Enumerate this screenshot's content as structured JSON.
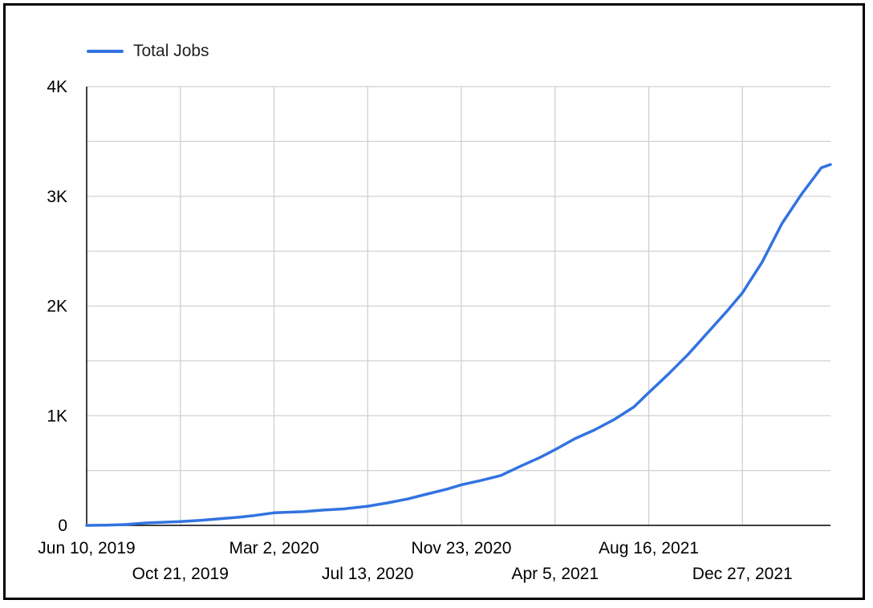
{
  "chart_data": {
    "type": "line",
    "title": "",
    "xlabel": "",
    "ylabel": "",
    "legend": "top-left",
    "grid": true,
    "colors": {
      "series": "#3273e0",
      "grid": "#d0d0d0",
      "axis": "#000000"
    },
    "x_ticks": [
      "Jun 10, 2019",
      "Oct 21, 2019",
      "Mar 2, 2020",
      "Jul 13, 2020",
      "Nov 23, 2020",
      "Apr 5, 2021",
      "Aug 16, 2021",
      "Dec 27, 2021"
    ],
    "x_range": [
      "2019-06-10",
      "2022-05-01"
    ],
    "y_ticks": [
      "0",
      "1K",
      "2K",
      "3K",
      "4K"
    ],
    "ylim": [
      0,
      4000
    ],
    "series": [
      {
        "name": "Total Jobs",
        "points": [
          [
            "2019-06-10",
            0
          ],
          [
            "2019-07-08",
            2
          ],
          [
            "2019-08-05",
            8
          ],
          [
            "2019-09-02",
            22
          ],
          [
            "2019-10-21",
            35
          ],
          [
            "2019-11-18",
            45
          ],
          [
            "2019-12-16",
            60
          ],
          [
            "2020-01-13",
            75
          ],
          [
            "2020-02-03",
            90
          ],
          [
            "2020-03-02",
            115
          ],
          [
            "2020-04-13",
            125
          ],
          [
            "2020-05-11",
            140
          ],
          [
            "2020-06-08",
            150
          ],
          [
            "2020-07-13",
            175
          ],
          [
            "2020-08-10",
            205
          ],
          [
            "2020-09-07",
            240
          ],
          [
            "2020-10-05",
            285
          ],
          [
            "2020-11-02",
            330
          ],
          [
            "2020-11-23",
            370
          ],
          [
            "2020-12-21",
            410
          ],
          [
            "2021-01-18",
            455
          ],
          [
            "2021-02-15",
            540
          ],
          [
            "2021-03-15",
            620
          ],
          [
            "2021-04-05",
            690
          ],
          [
            "2021-05-03",
            790
          ],
          [
            "2021-05-31",
            870
          ],
          [
            "2021-06-28",
            965
          ],
          [
            "2021-07-26",
            1080
          ],
          [
            "2021-08-16",
            1210
          ],
          [
            "2021-09-13",
            1380
          ],
          [
            "2021-10-11",
            1560
          ],
          [
            "2021-11-08",
            1760
          ],
          [
            "2021-12-06",
            1960
          ],
          [
            "2021-12-27",
            2120
          ],
          [
            "2022-01-24",
            2400
          ],
          [
            "2022-02-21",
            2750
          ],
          [
            "2022-03-21",
            3020
          ],
          [
            "2022-04-18",
            3260
          ],
          [
            "2022-05-01",
            3290
          ]
        ]
      }
    ]
  }
}
